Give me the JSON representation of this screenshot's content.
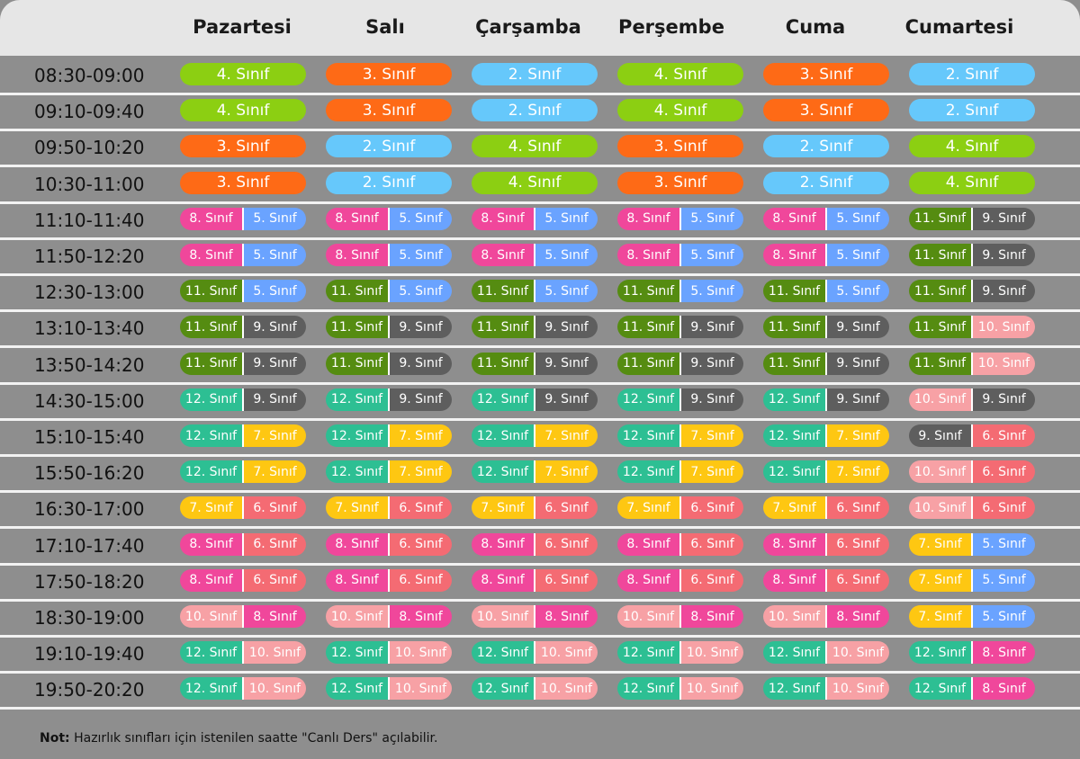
{
  "colors": {
    "4": "#8ccf12",
    "3": "#fe6a16",
    "2": "#66c8fb",
    "8": "#f0479b",
    "5": "#6aa3ff",
    "11": "#558c11",
    "9": "#5e5e5e",
    "10": "#f7a1a5",
    "12": "#2dbf93",
    "7": "#fec712",
    "6": "#f46b73"
  },
  "suffix": "Sınıf",
  "days": [
    "Pazartesi",
    "Salı",
    "Çarşamba",
    "Perşembe",
    "Cuma",
    "Cumartesi"
  ],
  "schedule": [
    {
      "time": "08:30-09:00",
      "cells": [
        [
          "4"
        ],
        [
          "3"
        ],
        [
          "2"
        ],
        [
          "4"
        ],
        [
          "3"
        ],
        [
          "2"
        ]
      ]
    },
    {
      "time": "09:10-09:40",
      "cells": [
        [
          "4"
        ],
        [
          "3"
        ],
        [
          "2"
        ],
        [
          "4"
        ],
        [
          "3"
        ],
        [
          "2"
        ]
      ]
    },
    {
      "time": "09:50-10:20",
      "cells": [
        [
          "3"
        ],
        [
          "2"
        ],
        [
          "4"
        ],
        [
          "3"
        ],
        [
          "2"
        ],
        [
          "4"
        ]
      ]
    },
    {
      "time": "10:30-11:00",
      "cells": [
        [
          "3"
        ],
        [
          "2"
        ],
        [
          "4"
        ],
        [
          "3"
        ],
        [
          "2"
        ],
        [
          "4"
        ]
      ]
    },
    {
      "time": "11:10-11:40",
      "cells": [
        [
          "8",
          "5"
        ],
        [
          "8",
          "5"
        ],
        [
          "8",
          "5"
        ],
        [
          "8",
          "5"
        ],
        [
          "8",
          "5"
        ],
        [
          "11",
          "9"
        ]
      ]
    },
    {
      "time": "11:50-12:20",
      "cells": [
        [
          "8",
          "5"
        ],
        [
          "8",
          "5"
        ],
        [
          "8",
          "5"
        ],
        [
          "8",
          "5"
        ],
        [
          "8",
          "5"
        ],
        [
          "11",
          "9"
        ]
      ]
    },
    {
      "time": "12:30-13:00",
      "cells": [
        [
          "11",
          "5"
        ],
        [
          "11",
          "5"
        ],
        [
          "11",
          "5"
        ],
        [
          "11",
          "5"
        ],
        [
          "11",
          "5"
        ],
        [
          "11",
          "9"
        ]
      ]
    },
    {
      "time": "13:10-13:40",
      "cells": [
        [
          "11",
          "9"
        ],
        [
          "11",
          "9"
        ],
        [
          "11",
          "9"
        ],
        [
          "11",
          "9"
        ],
        [
          "11",
          "9"
        ],
        [
          "11",
          "10"
        ]
      ]
    },
    {
      "time": "13:50-14:20",
      "cells": [
        [
          "11",
          "9"
        ],
        [
          "11",
          "9"
        ],
        [
          "11",
          "9"
        ],
        [
          "11",
          "9"
        ],
        [
          "11",
          "9"
        ],
        [
          "11",
          "10"
        ]
      ]
    },
    {
      "time": "14:30-15:00",
      "cells": [
        [
          "12",
          "9"
        ],
        [
          "12",
          "9"
        ],
        [
          "12",
          "9"
        ],
        [
          "12",
          "9"
        ],
        [
          "12",
          "9"
        ],
        [
          "10",
          "9"
        ]
      ]
    },
    {
      "time": "15:10-15:40",
      "cells": [
        [
          "12",
          "7"
        ],
        [
          "12",
          "7"
        ],
        [
          "12",
          "7"
        ],
        [
          "12",
          "7"
        ],
        [
          "12",
          "7"
        ],
        [
          "9",
          "6"
        ]
      ]
    },
    {
      "time": "15:50-16:20",
      "cells": [
        [
          "12",
          "7"
        ],
        [
          "12",
          "7"
        ],
        [
          "12",
          "7"
        ],
        [
          "12",
          "7"
        ],
        [
          "12",
          "7"
        ],
        [
          "10",
          "6"
        ]
      ]
    },
    {
      "time": "16:30-17:00",
      "cells": [
        [
          "7",
          "6"
        ],
        [
          "7",
          "6"
        ],
        [
          "7",
          "6"
        ],
        [
          "7",
          "6"
        ],
        [
          "7",
          "6"
        ],
        [
          "10",
          "6"
        ]
      ]
    },
    {
      "time": "17:10-17:40",
      "cells": [
        [
          "8",
          "6"
        ],
        [
          "8",
          "6"
        ],
        [
          "8",
          "6"
        ],
        [
          "8",
          "6"
        ],
        [
          "8",
          "6"
        ],
        [
          "7",
          "5"
        ]
      ]
    },
    {
      "time": "17:50-18:20",
      "cells": [
        [
          "8",
          "6"
        ],
        [
          "8",
          "6"
        ],
        [
          "8",
          "6"
        ],
        [
          "8",
          "6"
        ],
        [
          "8",
          "6"
        ],
        [
          "7",
          "5"
        ]
      ]
    },
    {
      "time": "18:30-19:00",
      "cells": [
        [
          "10",
          "8"
        ],
        [
          "10",
          "8"
        ],
        [
          "10",
          "8"
        ],
        [
          "10",
          "8"
        ],
        [
          "10",
          "8"
        ],
        [
          "7",
          "5"
        ]
      ]
    },
    {
      "time": "19:10-19:40",
      "cells": [
        [
          "12",
          "10"
        ],
        [
          "12",
          "10"
        ],
        [
          "12",
          "10"
        ],
        [
          "12",
          "10"
        ],
        [
          "12",
          "10"
        ],
        [
          "12",
          "8"
        ]
      ]
    },
    {
      "time": "19:50-20:20",
      "cells": [
        [
          "12",
          "10"
        ],
        [
          "12",
          "10"
        ],
        [
          "12",
          "10"
        ],
        [
          "12",
          "10"
        ],
        [
          "12",
          "10"
        ],
        [
          "12",
          "8"
        ]
      ]
    }
  ],
  "note": {
    "label": "Not:",
    "text": " Hazırlık sınıfları için istenilen saatte \"Canlı Ders\" açılabilir."
  }
}
